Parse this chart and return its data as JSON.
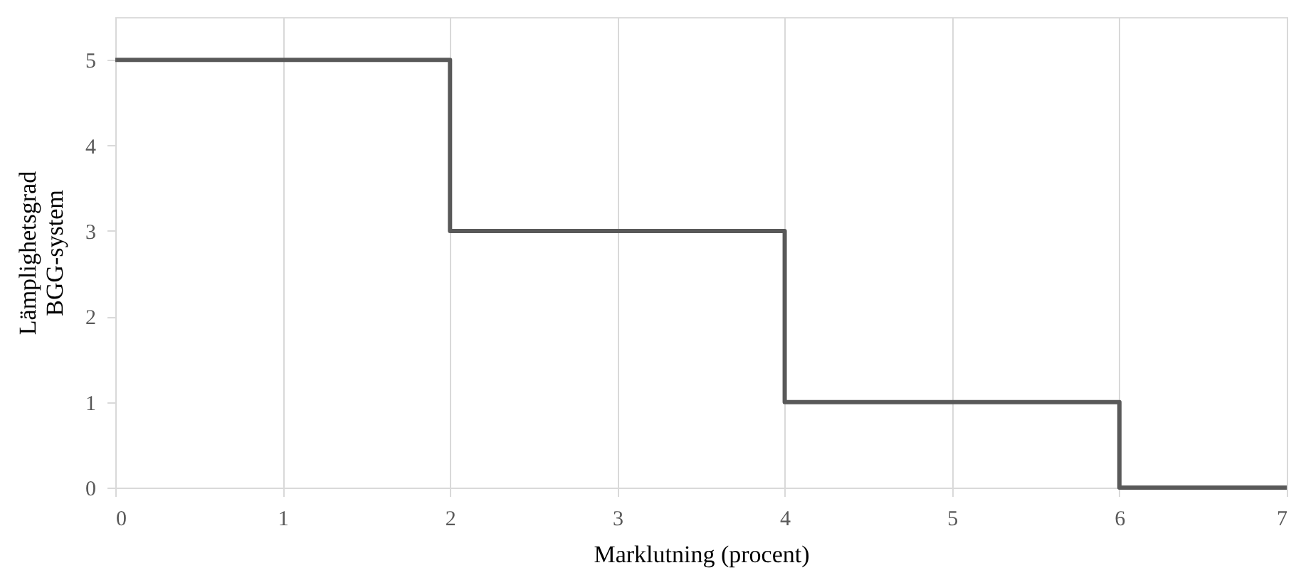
{
  "chart_data": {
    "type": "step",
    "xlabel": "Marklutning (procent)",
    "ylabel": "Lämplighetsgrad\nBGG-system",
    "x": [
      0,
      2,
      4,
      6,
      7
    ],
    "series": [
      {
        "color": "#595959",
        "values": [
          5,
          3,
          1,
          0,
          0
        ]
      }
    ],
    "xlim": [
      0,
      7
    ],
    "xticks": [
      0,
      1,
      2,
      3,
      4,
      5,
      6,
      7
    ],
    "ylim": [
      0,
      5.5
    ],
    "yticks": [
      0,
      1,
      2,
      3,
      4,
      5
    ],
    "grid": "x",
    "marker": "none",
    "line_style": "solid"
  }
}
